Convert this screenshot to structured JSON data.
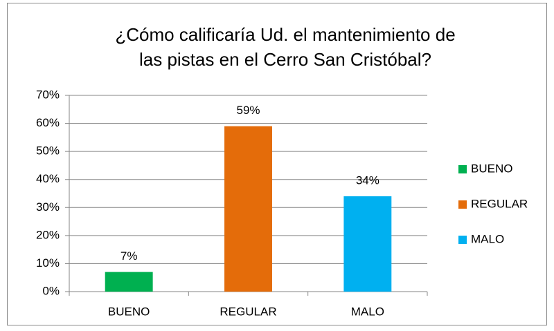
{
  "chart_data": {
    "type": "bar",
    "title": [
      "¿Cómo calificaría Ud. el mantenimiento de",
      "las pistas en el Cerro San Cristóbal?"
    ],
    "categories": [
      "BUENO",
      "REGULAR",
      "MALO"
    ],
    "values": [
      7,
      59,
      34
    ],
    "value_labels": [
      "7%",
      "59%",
      "34%"
    ],
    "colors": [
      "#00b050",
      "#e46c0a",
      "#00b0f0"
    ],
    "ylim": [
      0,
      70
    ],
    "yticks": [
      {
        "value": 0,
        "label": "0%"
      },
      {
        "value": 10,
        "label": "10%"
      },
      {
        "value": 20,
        "label": "20%"
      },
      {
        "value": 30,
        "label": "30%"
      },
      {
        "value": 40,
        "label": "40%"
      },
      {
        "value": 50,
        "label": "50%"
      },
      {
        "value": 60,
        "label": "60%"
      },
      {
        "value": 70,
        "label": "70%"
      }
    ],
    "grid": true,
    "legend": "right"
  }
}
